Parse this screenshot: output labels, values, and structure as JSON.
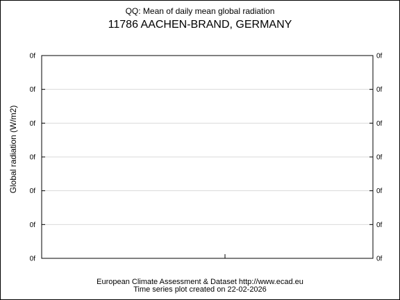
{
  "chart_data": {
    "type": "line",
    "title": "QQ: Mean of daily mean global radiation",
    "subtitle": "11786 AACHEN-BRAND, GERMANY",
    "xlabel": "",
    "ylabel": "Global radiation (W/m2)",
    "y_tick_labels": [
      "0f",
      "0f",
      "0f",
      "0f",
      "0f",
      "0f",
      "0f"
    ],
    "series": [],
    "grid": true,
    "legend": "none"
  },
  "footer": {
    "line1": "European Climate Assessment & Dataset  http://www.ecad.eu",
    "line2": "Time series plot created on 22-02-2026"
  }
}
